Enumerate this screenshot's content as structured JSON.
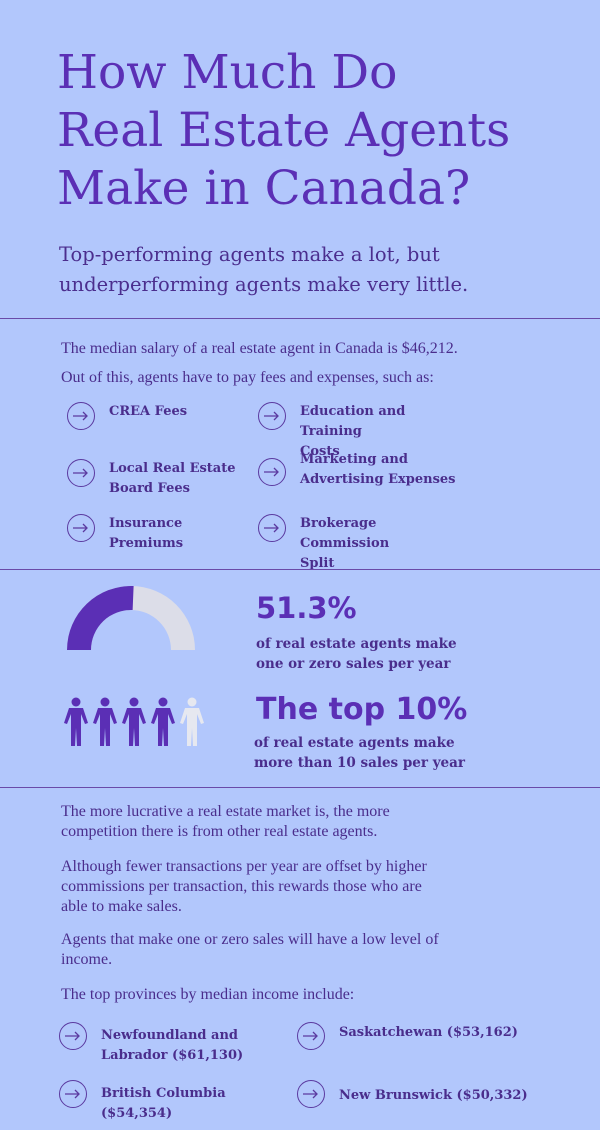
{
  "header": {
    "title_line1": "How Much Do",
    "title_line2": "Real Estate Agents",
    "title_line3": "Make in Canada?",
    "subtitle_line1": "Top-performing agents make a lot, but",
    "subtitle_line2": "underperforming agents make very little."
  },
  "intro": {
    "median_text": "The median salary of a real estate agent in Canada is $46,212.",
    "fees_intro": "Out of this, agents have to pay fees and expenses, such as:"
  },
  "fees": [
    {
      "line1": "CREA Fees",
      "line2": ""
    },
    {
      "line1": "Education and Training",
      "line2": "Costs"
    },
    {
      "line1": "Local Real Estate",
      "line2": "Board Fees"
    },
    {
      "line1": "Marketing and",
      "line2": "Advertising Expenses"
    },
    {
      "line1": "Insurance",
      "line2": "Premiums"
    },
    {
      "line1": "Brokerage Commission",
      "line2": "Split"
    }
  ],
  "stats": {
    "gauge_value_percent": 51.3,
    "stat1_value": "51.3%",
    "stat1_line1": "of real estate agents make",
    "stat1_line2": "one or zero sales per year",
    "people_highlighted": 4,
    "people_total": 5,
    "stat2_value": "The top 10%",
    "stat2_line1": "of real estate agents make",
    "stat2_line2": "more than 10 sales per year"
  },
  "body": {
    "p1_line1": "The more lucrative a real estate market is, the more",
    "p1_line2": "competition there is from other real estate agents.",
    "p2_line1": "Although fewer transactions per year are offset by higher",
    "p2_line2": "commissions per transaction, this rewards those who are",
    "p2_line3": "able to make sales.",
    "p3_line1": "Agents that make one or zero sales will have a low level of",
    "p3_line2": "income.",
    "p4": "The top provinces by median income include:"
  },
  "provinces": [
    {
      "line1": "Newfoundland and",
      "line2": "Labrador ($61,130)"
    },
    {
      "line1": "Saskatchewan ($53,162)",
      "line2": ""
    },
    {
      "line1": "British Columbia ($54,354)",
      "line2": ""
    },
    {
      "line1": "New Brunswick ($50,332)",
      "line2": ""
    }
  ],
  "colors": {
    "background": "#b2c7fc",
    "accent": "#5b2fb5",
    "gauge_empty": "#dcdde8",
    "person_empty": "#e6e8f0"
  },
  "icons": {
    "list_bullet": "arrow-right-circle-icon",
    "people": "person-icon"
  }
}
